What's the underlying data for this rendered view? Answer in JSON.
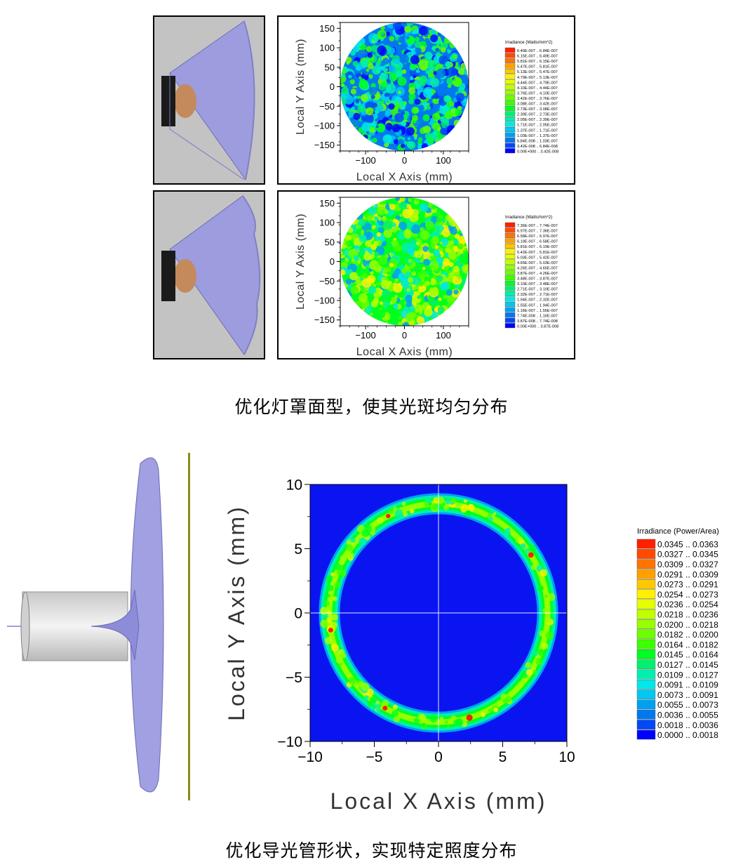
{
  "captions": {
    "top": "优化灯罩面型，使其光斑均匀分布",
    "bottom": "优化导光管形状，实现特定照度分布"
  },
  "colors": {
    "lamp_background": "#c3c3c3",
    "reflector": "#9c9cdf",
    "reflector_edge": "#6e6eb8",
    "bulb": "#c48a5c",
    "socket": "#1a1a1a",
    "lightpipe": "#e8e8e8",
    "target_plane": "#8a8a1a",
    "low_irradiance": "#0000ff",
    "high_irradiance": "#ff2000"
  },
  "chart_data": [
    {
      "type": "heatmap",
      "title": "",
      "xlabel": "Local X Axis (mm)",
      "ylabel": "Local Y Axis (mm)",
      "xlim": [
        -165,
        165
      ],
      "ylim": [
        -165,
        165
      ],
      "x_ticks": [
        "−100",
        "0",
        "100"
      ],
      "y_ticks": [
        "150",
        "100",
        "50",
        "0",
        "−50",
        "−100",
        "−150"
      ],
      "pattern": "uniform disk, radius 165 mm, mostly blue–green",
      "legend_title": "Irradiance (Watts/mm^2)",
      "legend": [
        {
          "label": "6.49E-007 .. 6.84E-007",
          "color": "#ff2000"
        },
        {
          "label": "6.15E-007 .. 6.49E-007",
          "color": "#ff4a00"
        },
        {
          "label": "5.81E-007 .. 6.15E-007",
          "color": "#ff7400"
        },
        {
          "label": "5.47E-007 .. 5.81E-007",
          "color": "#ffa000"
        },
        {
          "label": "5.13E-007 .. 5.47E-007",
          "color": "#ffc800"
        },
        {
          "label": "4.79E-007 .. 5.13E-007",
          "color": "#fff000"
        },
        {
          "label": "4.44E-007 .. 4.79E-007",
          "color": "#e4ff00"
        },
        {
          "label": "4.10E-007 .. 4.44E-007",
          "color": "#c0ff00"
        },
        {
          "label": "3.76E-007 .. 4.10E-007",
          "color": "#96ff00"
        },
        {
          "label": "3.42E-007 .. 3.76E-007",
          "color": "#6cff00"
        },
        {
          "label": "3.08E-007 .. 3.42E-007",
          "color": "#3cff00"
        },
        {
          "label": "2.73E-007 .. 3.08E-007",
          "color": "#00ff20"
        },
        {
          "label": "2.39E-007 .. 2.73E-007",
          "color": "#00f070"
        },
        {
          "label": "2.05E-007 .. 2.39E-007",
          "color": "#00f0b0"
        },
        {
          "label": "1.71E-007 .. 2.05E-007",
          "color": "#00e8e8"
        },
        {
          "label": "1.37E-007 .. 1.71E-007",
          "color": "#00c8f0"
        },
        {
          "label": "1.03E-007 .. 1.37E-007",
          "color": "#00a0f0"
        },
        {
          "label": "6.84E-008 .. 1.03E-007",
          "color": "#0078f0"
        },
        {
          "label": "3.42E-008 .. 6.84E-008",
          "color": "#0048f8"
        },
        {
          "label": "0.00E+000 .. 3.42E-008",
          "color": "#0000ff"
        }
      ]
    },
    {
      "type": "heatmap",
      "title": "",
      "xlabel": "Local X Axis (mm)",
      "ylabel": "Local Y Axis (mm)",
      "xlim": [
        -165,
        165
      ],
      "ylim": [
        -165,
        165
      ],
      "x_ticks": [
        "−100",
        "0",
        "100"
      ],
      "y_ticks": [
        "150",
        "100",
        "50",
        "0",
        "−50",
        "−100",
        "−150"
      ],
      "pattern": "uniform disk, radius 165 mm, mostly green–yellow",
      "legend_title": "Irradiance (Watts/mm^2)",
      "legend": [
        {
          "label": "7.36E-007 .. 7.74E-007",
          "color": "#ff2000"
        },
        {
          "label": "6.97E-007 .. 7.36E-007",
          "color": "#ff4a00"
        },
        {
          "label": "6.58E-007 .. 6.97E-007",
          "color": "#ff7400"
        },
        {
          "label": "6.19E-007 .. 6.58E-007",
          "color": "#ffa000"
        },
        {
          "label": "5.81E-007 .. 6.19E-007",
          "color": "#ffc800"
        },
        {
          "label": "5.42E-007 .. 5.81E-007",
          "color": "#fff000"
        },
        {
          "label": "5.03E-007 .. 5.42E-007",
          "color": "#e4ff00"
        },
        {
          "label": "4.65E-007 .. 5.03E-007",
          "color": "#c0ff00"
        },
        {
          "label": "4.26E-007 .. 4.65E-007",
          "color": "#96ff00"
        },
        {
          "label": "3.87E-007 .. 4.26E-007",
          "color": "#6cff00"
        },
        {
          "label": "3.48E-007 .. 3.87E-007",
          "color": "#3cff00"
        },
        {
          "label": "3.10E-007 .. 3.48E-007",
          "color": "#00ff20"
        },
        {
          "label": "2.71E-007 .. 3.10E-007",
          "color": "#00f070"
        },
        {
          "label": "2.32E-007 .. 2.71E-007",
          "color": "#00f0b0"
        },
        {
          "label": "1.94E-007 .. 2.32E-007",
          "color": "#00e8e8"
        },
        {
          "label": "1.55E-007 .. 1.94E-007",
          "color": "#00c8f0"
        },
        {
          "label": "1.16E-007 .. 1.55E-007",
          "color": "#00a0f0"
        },
        {
          "label": "7.74E-008 .. 1.16E-007",
          "color": "#0078f0"
        },
        {
          "label": "3.87E-008 .. 7.74E-008",
          "color": "#0048f8"
        },
        {
          "label": "0.00E+000 .. 3.87E-008",
          "color": "#0000ff"
        }
      ]
    },
    {
      "type": "heatmap",
      "title": "",
      "xlabel": "Local X Axis (mm)",
      "ylabel": "Local Y Axis (mm)",
      "xlim": [
        -10,
        10
      ],
      "ylim": [
        -10,
        10
      ],
      "x_ticks": [
        "−10",
        "−5",
        "0",
        "5",
        "10"
      ],
      "y_ticks": [
        "10",
        "5",
        "0",
        "−5",
        "−10"
      ],
      "pattern": "ring centered at origin, radius 8.5 mm, on dark-blue background",
      "ring_radius": 8.5,
      "legend_title": "Irradiance (Power/Area)",
      "legend": [
        {
          "label": "0.0345 .. 0.0363",
          "color": "#ff2000"
        },
        {
          "label": "0.0327 .. 0.0345",
          "color": "#ff4a00"
        },
        {
          "label": "0.0309 .. 0.0327",
          "color": "#ff7400"
        },
        {
          "label": "0.0291 .. 0.0309",
          "color": "#ffa000"
        },
        {
          "label": "0.0273 .. 0.0291",
          "color": "#ffc800"
        },
        {
          "label": "0.0254 .. 0.0273",
          "color": "#fff000"
        },
        {
          "label": "0.0236 .. 0.0254",
          "color": "#e4ff00"
        },
        {
          "label": "0.0218 .. 0.0236",
          "color": "#c0ff00"
        },
        {
          "label": "0.0200 .. 0.0218",
          "color": "#96ff00"
        },
        {
          "label": "0.0182 .. 0.0200",
          "color": "#6cff00"
        },
        {
          "label": "0.0164 .. 0.0182",
          "color": "#3cff00"
        },
        {
          "label": "0.0145 .. 0.0164",
          "color": "#00ff20"
        },
        {
          "label": "0.0127 .. 0.0145",
          "color": "#00f070"
        },
        {
          "label": "0.0109 .. 0.0127",
          "color": "#00f0b0"
        },
        {
          "label": "0.0091 .. 0.0109",
          "color": "#00e8e8"
        },
        {
          "label": "0.0073 .. 0.0091",
          "color": "#00c8f0"
        },
        {
          "label": "0.0055 .. 0.0073",
          "color": "#00a0f0"
        },
        {
          "label": "0.0036 .. 0.0055",
          "color": "#0078f0"
        },
        {
          "label": "0.0018 .. 0.0036",
          "color": "#0048f8"
        },
        {
          "label": "0.0000 .. 0.0018",
          "color": "#0000ff"
        }
      ]
    }
  ]
}
